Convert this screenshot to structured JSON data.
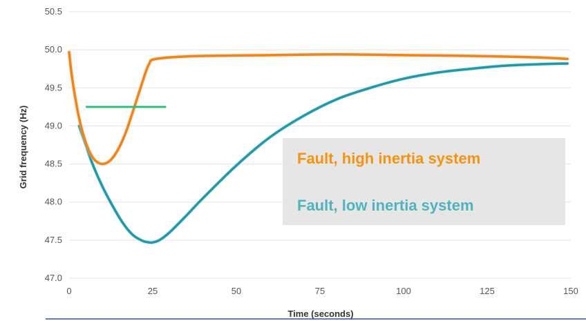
{
  "chart_data": {
    "type": "line",
    "xlabel": "Time (seconds)",
    "ylabel": "Grid frequency (Hz)",
    "xlim": [
      0,
      150
    ],
    "ylim": [
      47.0,
      50.5
    ],
    "x_ticks": [
      "0",
      "25",
      "50",
      "75",
      "100",
      "125",
      "150"
    ],
    "y_ticks": [
      "47.0",
      "47.5",
      "48.0",
      "48.5",
      "49.0",
      "49.5",
      "50.0",
      "50.5"
    ],
    "grid": "horizontal",
    "legend_position": "center-right",
    "series": [
      {
        "name": "Fault, high inertia system",
        "color": "#f7820e",
        "x": [
          0,
          1,
          3,
          5,
          7,
          9,
          11,
          13,
          15,
          17,
          19,
          21,
          23,
          24,
          25,
          30,
          40,
          60,
          80,
          100,
          120,
          140,
          149
        ],
        "y": [
          49.97,
          49.6,
          49.1,
          48.78,
          48.59,
          48.51,
          48.51,
          48.58,
          48.72,
          48.92,
          49.18,
          49.45,
          49.72,
          49.82,
          49.87,
          49.9,
          49.92,
          49.93,
          49.94,
          49.93,
          49.92,
          49.9,
          49.88
        ]
      },
      {
        "name": "Fault, low inertia system",
        "color": "#1b9aaa",
        "x": [
          3,
          5,
          7,
          10,
          13,
          16,
          19,
          22,
          24,
          25,
          27,
          30,
          35,
          40,
          50,
          60,
          70,
          80,
          90,
          100,
          110,
          120,
          130,
          140,
          149
        ],
        "y": [
          49.0,
          48.75,
          48.5,
          48.2,
          47.95,
          47.73,
          47.57,
          47.49,
          47.47,
          47.47,
          47.5,
          47.6,
          47.82,
          48.05,
          48.48,
          48.85,
          49.13,
          49.35,
          49.5,
          49.62,
          49.7,
          49.75,
          49.79,
          49.81,
          49.82
        ]
      },
      {
        "color": "#2ebd7a",
        "x": [
          5,
          29
        ],
        "y": [
          49.25,
          49.25
        ]
      }
    ],
    "legend": {
      "background": "#e6e6e6"
    }
  }
}
